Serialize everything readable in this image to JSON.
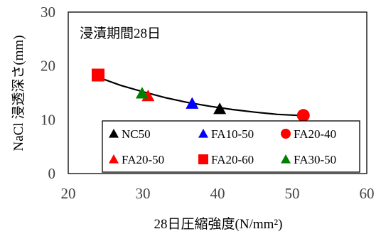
{
  "chart_data": {
    "type": "scatter",
    "annotation": "浸漬期間28日",
    "xlabel": "28日圧縮強度(N/mm²)",
    "ylabel": "NaCl 浸透深さ(mm)",
    "xlim": [
      20,
      60
    ],
    "ylim": [
      0,
      30
    ],
    "xticks": [
      "20",
      "30",
      "40",
      "50",
      "60"
    ],
    "yticks": [
      "0",
      "10",
      "20",
      "30"
    ],
    "grid": false,
    "legend_position": "bottom-right",
    "series": [
      {
        "name": "NC50",
        "marker": "triangle",
        "color": "#000000",
        "points": [
          {
            "x": 40.3,
            "y": 12.0
          }
        ]
      },
      {
        "name": "FA10-50",
        "marker": "triangle",
        "color": "#0000ff",
        "points": [
          {
            "x": 36.6,
            "y": 13.0
          }
        ]
      },
      {
        "name": "FA20-40",
        "marker": "circle",
        "color": "#ff0000",
        "points": [
          {
            "x": 51.5,
            "y": 10.8
          }
        ]
      },
      {
        "name": "FA20-50",
        "marker": "triangle",
        "color": "#ff0000",
        "points": [
          {
            "x": 30.7,
            "y": 14.4
          }
        ]
      },
      {
        "name": "FA20-60",
        "marker": "square",
        "color": "#ff0000",
        "points": [
          {
            "x": 24.0,
            "y": 18.3
          }
        ]
      },
      {
        "name": "FA30-50",
        "marker": "triangle",
        "color": "#008000",
        "points": [
          {
            "x": 29.9,
            "y": 14.9
          }
        ]
      }
    ],
    "trendline": {
      "color": "#000000",
      "points": [
        {
          "x": 24.0,
          "y": 17.9
        },
        {
          "x": 27.0,
          "y": 16.4
        },
        {
          "x": 30.0,
          "y": 15.2
        },
        {
          "x": 33.0,
          "y": 14.1
        },
        {
          "x": 36.0,
          "y": 13.2
        },
        {
          "x": 39.0,
          "y": 12.5
        },
        {
          "x": 42.0,
          "y": 11.9
        },
        {
          "x": 45.0,
          "y": 11.4
        },
        {
          "x": 48.0,
          "y": 11.0
        },
        {
          "x": 51.0,
          "y": 10.8
        }
      ]
    }
  }
}
